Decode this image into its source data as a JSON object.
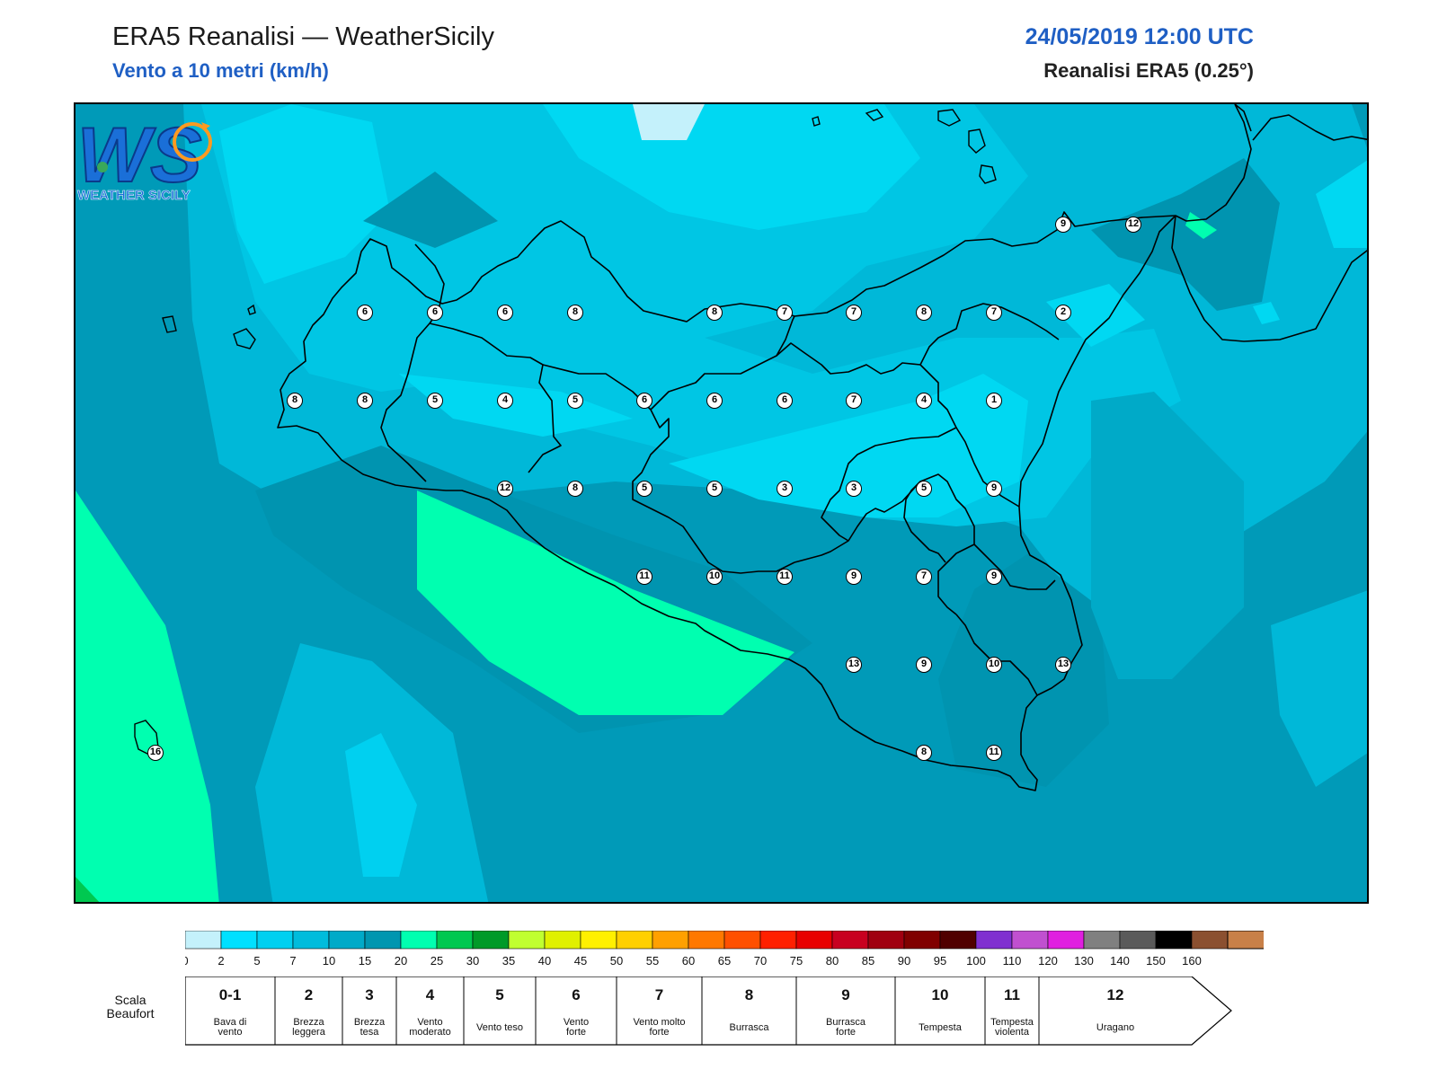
{
  "header": {
    "title": "ERA5 Reanalisi — WeatherSicily",
    "subtitle": "Vento a 10 metri (km/h)",
    "datetime": "24/05/2019 12:00 UTC",
    "model": "Reanalisi ERA5 (0.25°)"
  },
  "logo": {
    "letters": "WS",
    "text": "WEATHER SICILY"
  },
  "station_values": [
    {
      "v": 9,
      "c": 1181,
      "r": 248
    },
    {
      "v": 12,
      "c": 1259,
      "r": 248
    },
    {
      "v": 6,
      "c": 404,
      "r": 346
    },
    {
      "v": 6,
      "c": 482,
      "r": 346
    },
    {
      "v": 6,
      "c": 560,
      "r": 346
    },
    {
      "v": 8,
      "c": 638,
      "r": 346
    },
    {
      "v": 8,
      "c": 793,
      "r": 346
    },
    {
      "v": 7,
      "c": 871,
      "r": 346
    },
    {
      "v": 7,
      "c": 948,
      "r": 346
    },
    {
      "v": 8,
      "c": 1026,
      "r": 346
    },
    {
      "v": 7,
      "c": 1104,
      "r": 346
    },
    {
      "v": 2,
      "c": 1181,
      "r": 346
    },
    {
      "v": 8,
      "c": 326,
      "r": 444
    },
    {
      "v": 8,
      "c": 404,
      "r": 444
    },
    {
      "v": 5,
      "c": 482,
      "r": 444
    },
    {
      "v": 4,
      "c": 560,
      "r": 444
    },
    {
      "v": 5,
      "c": 638,
      "r": 444
    },
    {
      "v": 6,
      "c": 715,
      "r": 444
    },
    {
      "v": 6,
      "c": 793,
      "r": 444
    },
    {
      "v": 6,
      "c": 871,
      "r": 444
    },
    {
      "v": 7,
      "c": 948,
      "r": 444
    },
    {
      "v": 4,
      "c": 1026,
      "r": 444
    },
    {
      "v": 1,
      "c": 1104,
      "r": 444
    },
    {
      "v": 12,
      "c": 560,
      "r": 542
    },
    {
      "v": 8,
      "c": 638,
      "r": 542
    },
    {
      "v": 5,
      "c": 715,
      "r": 542
    },
    {
      "v": 5,
      "c": 793,
      "r": 542
    },
    {
      "v": 3,
      "c": 871,
      "r": 542
    },
    {
      "v": 3,
      "c": 948,
      "r": 542
    },
    {
      "v": 5,
      "c": 1026,
      "r": 542
    },
    {
      "v": 9,
      "c": 1104,
      "r": 542
    },
    {
      "v": 11,
      "c": 715,
      "r": 640
    },
    {
      "v": 10,
      "c": 793,
      "r": 640
    },
    {
      "v": 11,
      "c": 871,
      "r": 640
    },
    {
      "v": 9,
      "c": 948,
      "r": 640
    },
    {
      "v": 7,
      "c": 1026,
      "r": 640
    },
    {
      "v": 9,
      "c": 1104,
      "r": 640
    },
    {
      "v": 13,
      "c": 948,
      "r": 738
    },
    {
      "v": 9,
      "c": 1026,
      "r": 738
    },
    {
      "v": 10,
      "c": 1104,
      "r": 738
    },
    {
      "v": 13,
      "c": 1181,
      "r": 738
    },
    {
      "v": 8,
      "c": 1026,
      "r": 836
    },
    {
      "v": 11,
      "c": 1104,
      "r": 836
    },
    {
      "v": 16,
      "c": 171,
      "r": 836
    }
  ],
  "colorbar": {
    "ticks": [
      "0",
      "2",
      "5",
      "7",
      "10",
      "15",
      "20",
      "25",
      "30",
      "35",
      "40",
      "45",
      "50",
      "55",
      "60",
      "65",
      "70",
      "75",
      "80",
      "85",
      "90",
      "95",
      "100",
      "110",
      "120",
      "130",
      "140",
      "150",
      "160"
    ],
    "colors": [
      "#c4f1fb",
      "#00e0ff",
      "#00d0f0",
      "#00bcdc",
      "#00aac8",
      "#0096b0",
      "#00ffb0",
      "#00c850",
      "#009a28",
      "#c0ff30",
      "#e0f000",
      "#fff000",
      "#ffd000",
      "#ffa000",
      "#ff7800",
      "#ff5000",
      "#ff2000",
      "#e80000",
      "#c80020",
      "#a00010",
      "#800000",
      "#500000",
      "#8030d0",
      "#c050d0",
      "#e020e0",
      "#808080",
      "#5a5a5a",
      "#000000",
      "#8b5030",
      "#c88048"
    ]
  },
  "beaufort": {
    "label": "Scala Beaufort",
    "classes": [
      {
        "num": "0-1",
        "name": "Bava di vento"
      },
      {
        "num": "2",
        "name": "Brezza leggera"
      },
      {
        "num": "3",
        "name": "Brezza tesa"
      },
      {
        "num": "4",
        "name": "Vento moderato"
      },
      {
        "num": "5",
        "name": "Vento teso"
      },
      {
        "num": "6",
        "name": "Vento forte"
      },
      {
        "num": "7",
        "name": "Vento molto forte"
      },
      {
        "num": "8",
        "name": "Burrasca"
      },
      {
        "num": "9",
        "name": "Burrasca forte"
      },
      {
        "num": "10",
        "name": "Tempesta"
      },
      {
        "num": "11",
        "name": "Tempesta violenta"
      },
      {
        "num": "12",
        "name": "Uragano"
      }
    ]
  }
}
